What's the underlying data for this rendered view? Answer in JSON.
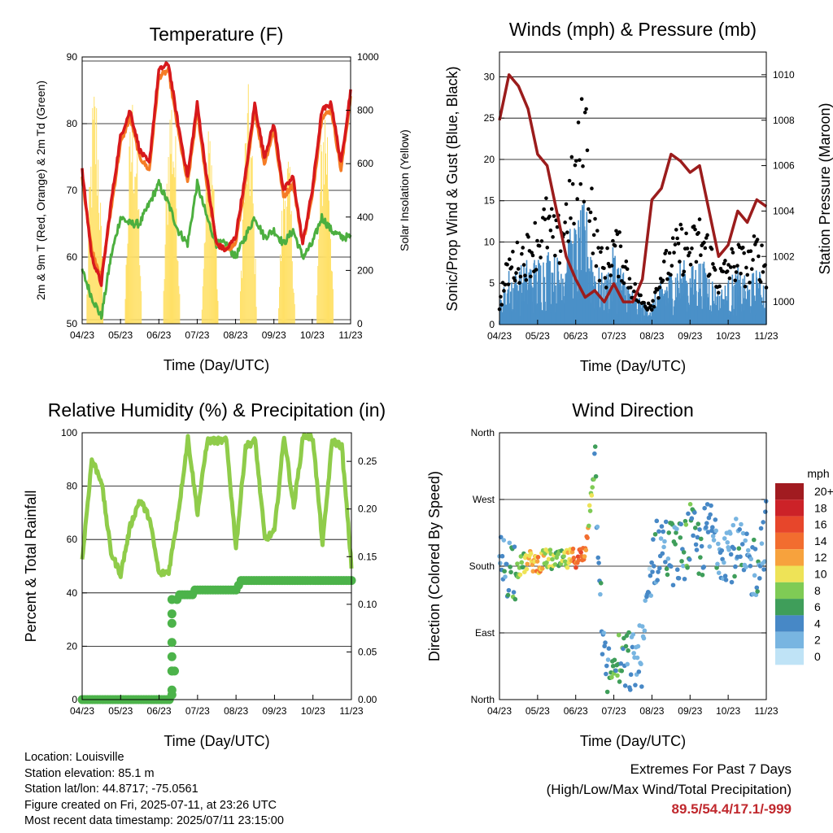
{
  "time_ticks": [
    "04/23",
    "05/23",
    "06/23",
    "07/23",
    "08/23",
    "09/23",
    "10/23",
    "11/23"
  ],
  "colors": {
    "temp2m": "#d7191c",
    "temp9m": "#f57c25",
    "dewpoint": "#4caf3f",
    "solar": "#ffe066",
    "wind": "#4a90c8",
    "gust": "#000000",
    "pressure": "#9b1c1c",
    "rh": "#8fcc4a",
    "precip": "#4cb34a",
    "highlight": "#c0282d"
  },
  "chart_data": [
    {
      "id": "temperature",
      "type": "line",
      "title": "Temperature (F)",
      "xlabel": "Time (Day/UTC)",
      "ylabel": "2m & 9m T (Red, Orange) & 2m Td (Green)",
      "ylabel_right": "Solar Insolation (Yellow)",
      "ylim": [
        50,
        90
      ],
      "ylim_right": [
        0,
        1000
      ],
      "yticks": [
        50,
        60,
        70,
        80,
        90
      ],
      "yticks_right": [
        0,
        200,
        400,
        600,
        800,
        1000
      ],
      "x_hours": [
        0,
        6,
        12,
        18,
        24,
        30,
        36,
        42,
        48,
        54,
        60,
        66,
        72,
        78,
        84,
        90,
        96,
        102,
        108,
        114,
        120,
        126,
        132,
        138,
        144,
        150,
        156,
        162,
        168
      ],
      "series": [
        {
          "key": "t2m",
          "values": [
            73,
            60,
            56,
            68,
            78,
            82,
            76,
            74,
            88,
            89,
            80,
            72,
            83,
            72,
            62,
            61,
            63,
            72,
            83,
            75,
            80,
            70,
            72,
            62,
            70,
            82,
            83,
            74,
            85
          ]
        },
        {
          "key": "t9m",
          "values": [
            72,
            61,
            57,
            67,
            77,
            81,
            75,
            73,
            87,
            88,
            79,
            71,
            82,
            71,
            62,
            61,
            62,
            71,
            82,
            74,
            79,
            69,
            71,
            62,
            69,
            81,
            82,
            73,
            84
          ]
        },
        {
          "key": "td",
          "values": [
            58,
            54,
            51,
            60,
            66,
            65,
            65,
            68,
            71,
            68,
            64,
            62,
            71,
            66,
            62,
            62,
            60,
            63,
            66,
            63,
            64,
            62,
            64,
            60,
            62,
            66,
            64,
            63,
            63
          ]
        },
        {
          "key": "solar",
          "day_peaks": [
            [
              8,
              950
            ],
            [
              32,
              920
            ],
            [
              56,
              960
            ],
            [
              80,
              820
            ],
            [
              104,
              900
            ],
            [
              128,
              700
            ],
            [
              152,
              930
            ]
          ]
        }
      ]
    },
    {
      "id": "winds",
      "type": "line",
      "title": "Winds (mph) & Pressure (mb)",
      "xlabel": "Time (Day/UTC)",
      "ylabel": "Sonic/Prop Wind & Gust (Blue, Black)",
      "ylabel_right": "Station Pressure (Maroon)",
      "ylim": [
        0,
        33
      ],
      "ylim_right": [
        999,
        1011
      ],
      "yticks": [
        0,
        5,
        10,
        15,
        20,
        25,
        30
      ],
      "yticks_right": [
        1000,
        1002,
        1004,
        1006,
        1008,
        1010
      ],
      "x_hours": [
        0,
        6,
        12,
        18,
        24,
        30,
        36,
        42,
        48,
        54,
        60,
        66,
        72,
        78,
        84,
        90,
        96,
        102,
        108,
        114,
        120,
        126,
        132,
        138,
        144,
        150,
        156,
        162,
        168
      ],
      "series": [
        {
          "key": "wind",
          "values": [
            2,
            5,
            5,
            6,
            6,
            7,
            6,
            8,
            9,
            11,
            6,
            4,
            7,
            5,
            3,
            2,
            2,
            4,
            5,
            6,
            5,
            6,
            5,
            3,
            4,
            5,
            4,
            5,
            4
          ]
        },
        {
          "key": "gust",
          "values": [
            3,
            8,
            9,
            10,
            12,
            14,
            11,
            15,
            20,
            27,
            12,
            7,
            11,
            9,
            5,
            3,
            3,
            7,
            9,
            11,
            10,
            12,
            10,
            6,
            8,
            9,
            8,
            10,
            8
          ]
        },
        {
          "key": "pressure",
          "values": [
            1008,
            1010,
            1009.5,
            1008.5,
            1006.5,
            1006,
            1004,
            1002,
            1001,
            1000.2,
            1000.5,
            1000,
            1000.8,
            1000,
            1000,
            1001,
            1004.5,
            1005,
            1006.5,
            1006.2,
            1005.7,
            1006,
            1004,
            1002,
            1002.5,
            1004,
            1003.5,
            1004.5,
            1004.2
          ]
        }
      ]
    },
    {
      "id": "humidity",
      "type": "line",
      "title": "Relative Humidity (%) & Precipitation (in)",
      "xlabel": "Time (Day/UTC)",
      "ylabel": "Percent & Total Rainfall",
      "ylim": [
        0,
        100
      ],
      "ylim_right": [
        0,
        0.28
      ],
      "yticks": [
        0,
        20,
        40,
        60,
        80,
        100
      ],
      "yticks_right": [
        0.0,
        0.05,
        0.1,
        0.15,
        0.2,
        0.25
      ],
      "x_hours": [
        0,
        6,
        12,
        18,
        24,
        30,
        36,
        42,
        48,
        54,
        60,
        66,
        72,
        78,
        84,
        90,
        96,
        102,
        108,
        114,
        120,
        126,
        132,
        138,
        144,
        150,
        156,
        162,
        168
      ],
      "series": [
        {
          "key": "rh",
          "values": [
            52,
            90,
            82,
            55,
            47,
            65,
            75,
            68,
            47,
            48,
            70,
            98,
            70,
            97,
            97,
            97,
            57,
            95,
            97,
            60,
            63,
            99,
            72,
            99,
            98,
            58,
            97,
            95,
            50
          ]
        },
        {
          "key": "precip",
          "steps": [
            [
              0,
              0
            ],
            [
              54,
              0
            ],
            [
              56,
              0.03
            ],
            [
              58,
              0.105
            ],
            [
              60,
              0.11
            ],
            [
              66,
              0.11
            ],
            [
              70,
              0.115
            ],
            [
              84,
              0.115
            ],
            [
              96,
              0.12
            ],
            [
              99,
              0.125
            ],
            [
              168,
              0.125
            ]
          ]
        }
      ]
    },
    {
      "id": "direction",
      "type": "scatter",
      "title": "Wind Direction",
      "xlabel": "Time (Day/UTC)",
      "ylabel": "Direction (Colored By Speed)",
      "ylim": [
        0,
        360
      ],
      "ytick_values": [
        0,
        90,
        180,
        270,
        360
      ],
      "ytick_labels": [
        "North",
        "East",
        "South",
        "West",
        "North"
      ],
      "legend": {
        "title": "mph",
        "placement": "right",
        "labels": [
          "20+",
          "18",
          "16",
          "14",
          "12",
          "10",
          "8",
          "6",
          "4",
          "2",
          "0"
        ],
        "colors": [
          "#a11b20",
          "#cc2228",
          "#e7462b",
          "#f26d2f",
          "#f7a23d",
          "#eee357",
          "#7fcb55",
          "#3f9e5a",
          "#4788c6",
          "#78b5e1",
          "#bfe3f6"
        ]
      },
      "x_hours": [
        0,
        6,
        12,
        18,
        24,
        30,
        36,
        42,
        48,
        54,
        60,
        66,
        72,
        78,
        84,
        90,
        96,
        102,
        108,
        114,
        120,
        126,
        132,
        138,
        144,
        150,
        156,
        162,
        168
      ],
      "series": [
        {
          "key": "direction",
          "values": [
            180,
            182,
            178,
            188,
            184,
            190,
            186,
            188,
            192,
            194,
            330,
            40,
            42,
            46,
            50,
            62,
            190,
            210,
            200,
            196,
            220,
            200,
            230,
            210,
            205,
            200,
            178,
            182,
            232
          ]
        },
        {
          "key": "speed",
          "values": [
            3,
            4,
            7,
            10,
            12,
            9,
            8,
            9,
            14,
            13,
            5,
            3,
            7,
            5,
            3,
            2,
            3,
            4,
            5,
            4,
            6,
            4,
            4,
            3,
            3,
            4,
            3,
            4,
            3
          ]
        }
      ]
    }
  ],
  "info": {
    "location": "Location: Louisville",
    "elevation": "Station elevation: 85.1 m",
    "latlon": "Station lat/lon: 44.8717; -75.0561",
    "created": "Figure created on Fri, 2025-07-11, at 23:26 UTC",
    "recent": "Most recent data timestamp: 2025/07/11 23:15:00"
  },
  "extremes": {
    "line1": "Extremes For Past 7 Days",
    "line2": "(High/Low/Max Wind/Total Precipitation)",
    "values": "89.5/54.4/17.1/-999"
  }
}
